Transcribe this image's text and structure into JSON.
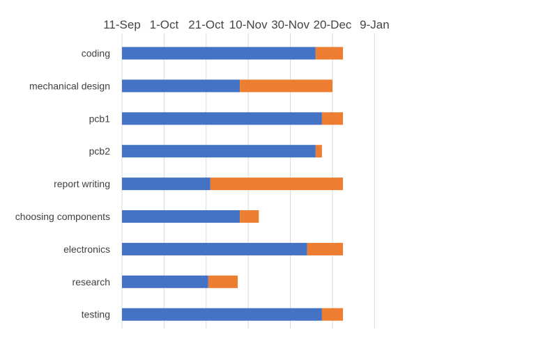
{
  "chart_data": {
    "type": "bar",
    "orientation": "horizontal",
    "stacked": true,
    "x_axis_position": "top",
    "grid": true,
    "legend": "none",
    "x_ticks": [
      "11-Sep",
      "1-Oct",
      "21-Oct",
      "10-Nov",
      "30-Nov",
      "20-Dec",
      "9-Jan"
    ],
    "xlim": [
      "11-Sep",
      "9-Jan"
    ],
    "categories": [
      "coding",
      "mechanical design",
      "pcb1",
      "pcb2",
      "report writing",
      "choosing components",
      "electronics",
      "research",
      "testing"
    ],
    "series": [
      {
        "color": "#4472C4",
        "values": [
          "11-Sep",
          "11-Sep",
          "11-Sep",
          "11-Sep",
          "11-Sep",
          "11-Sep",
          "11-Sep",
          "11-Sep",
          "11-Sep"
        ],
        "end_values": [
          "12-Dec",
          "6-Nov",
          "15-Dec",
          "12-Dec",
          "23-Oct",
          "6-Nov",
          "8-Dec",
          "22-Oct",
          "15-Dec"
        ]
      },
      {
        "color": "#ED7D31",
        "values": [
          "12-Dec",
          "6-Nov",
          "15-Dec",
          "12-Dec",
          "23-Oct",
          "6-Nov",
          "8-Dec",
          "22-Oct",
          "15-Dec"
        ],
        "end_values": [
          "25-Dec",
          "20-Dec",
          "25-Dec",
          "15-Dec",
          "25-Dec",
          "15-Nov",
          "25-Dec",
          "5-Nov",
          "25-Dec"
        ]
      }
    ],
    "blue_days": [
      92,
      56,
      95,
      92,
      42,
      56,
      88,
      41,
      95
    ],
    "orange_days": [
      13,
      44,
      10,
      3,
      63,
      9,
      17,
      14,
      10
    ]
  }
}
